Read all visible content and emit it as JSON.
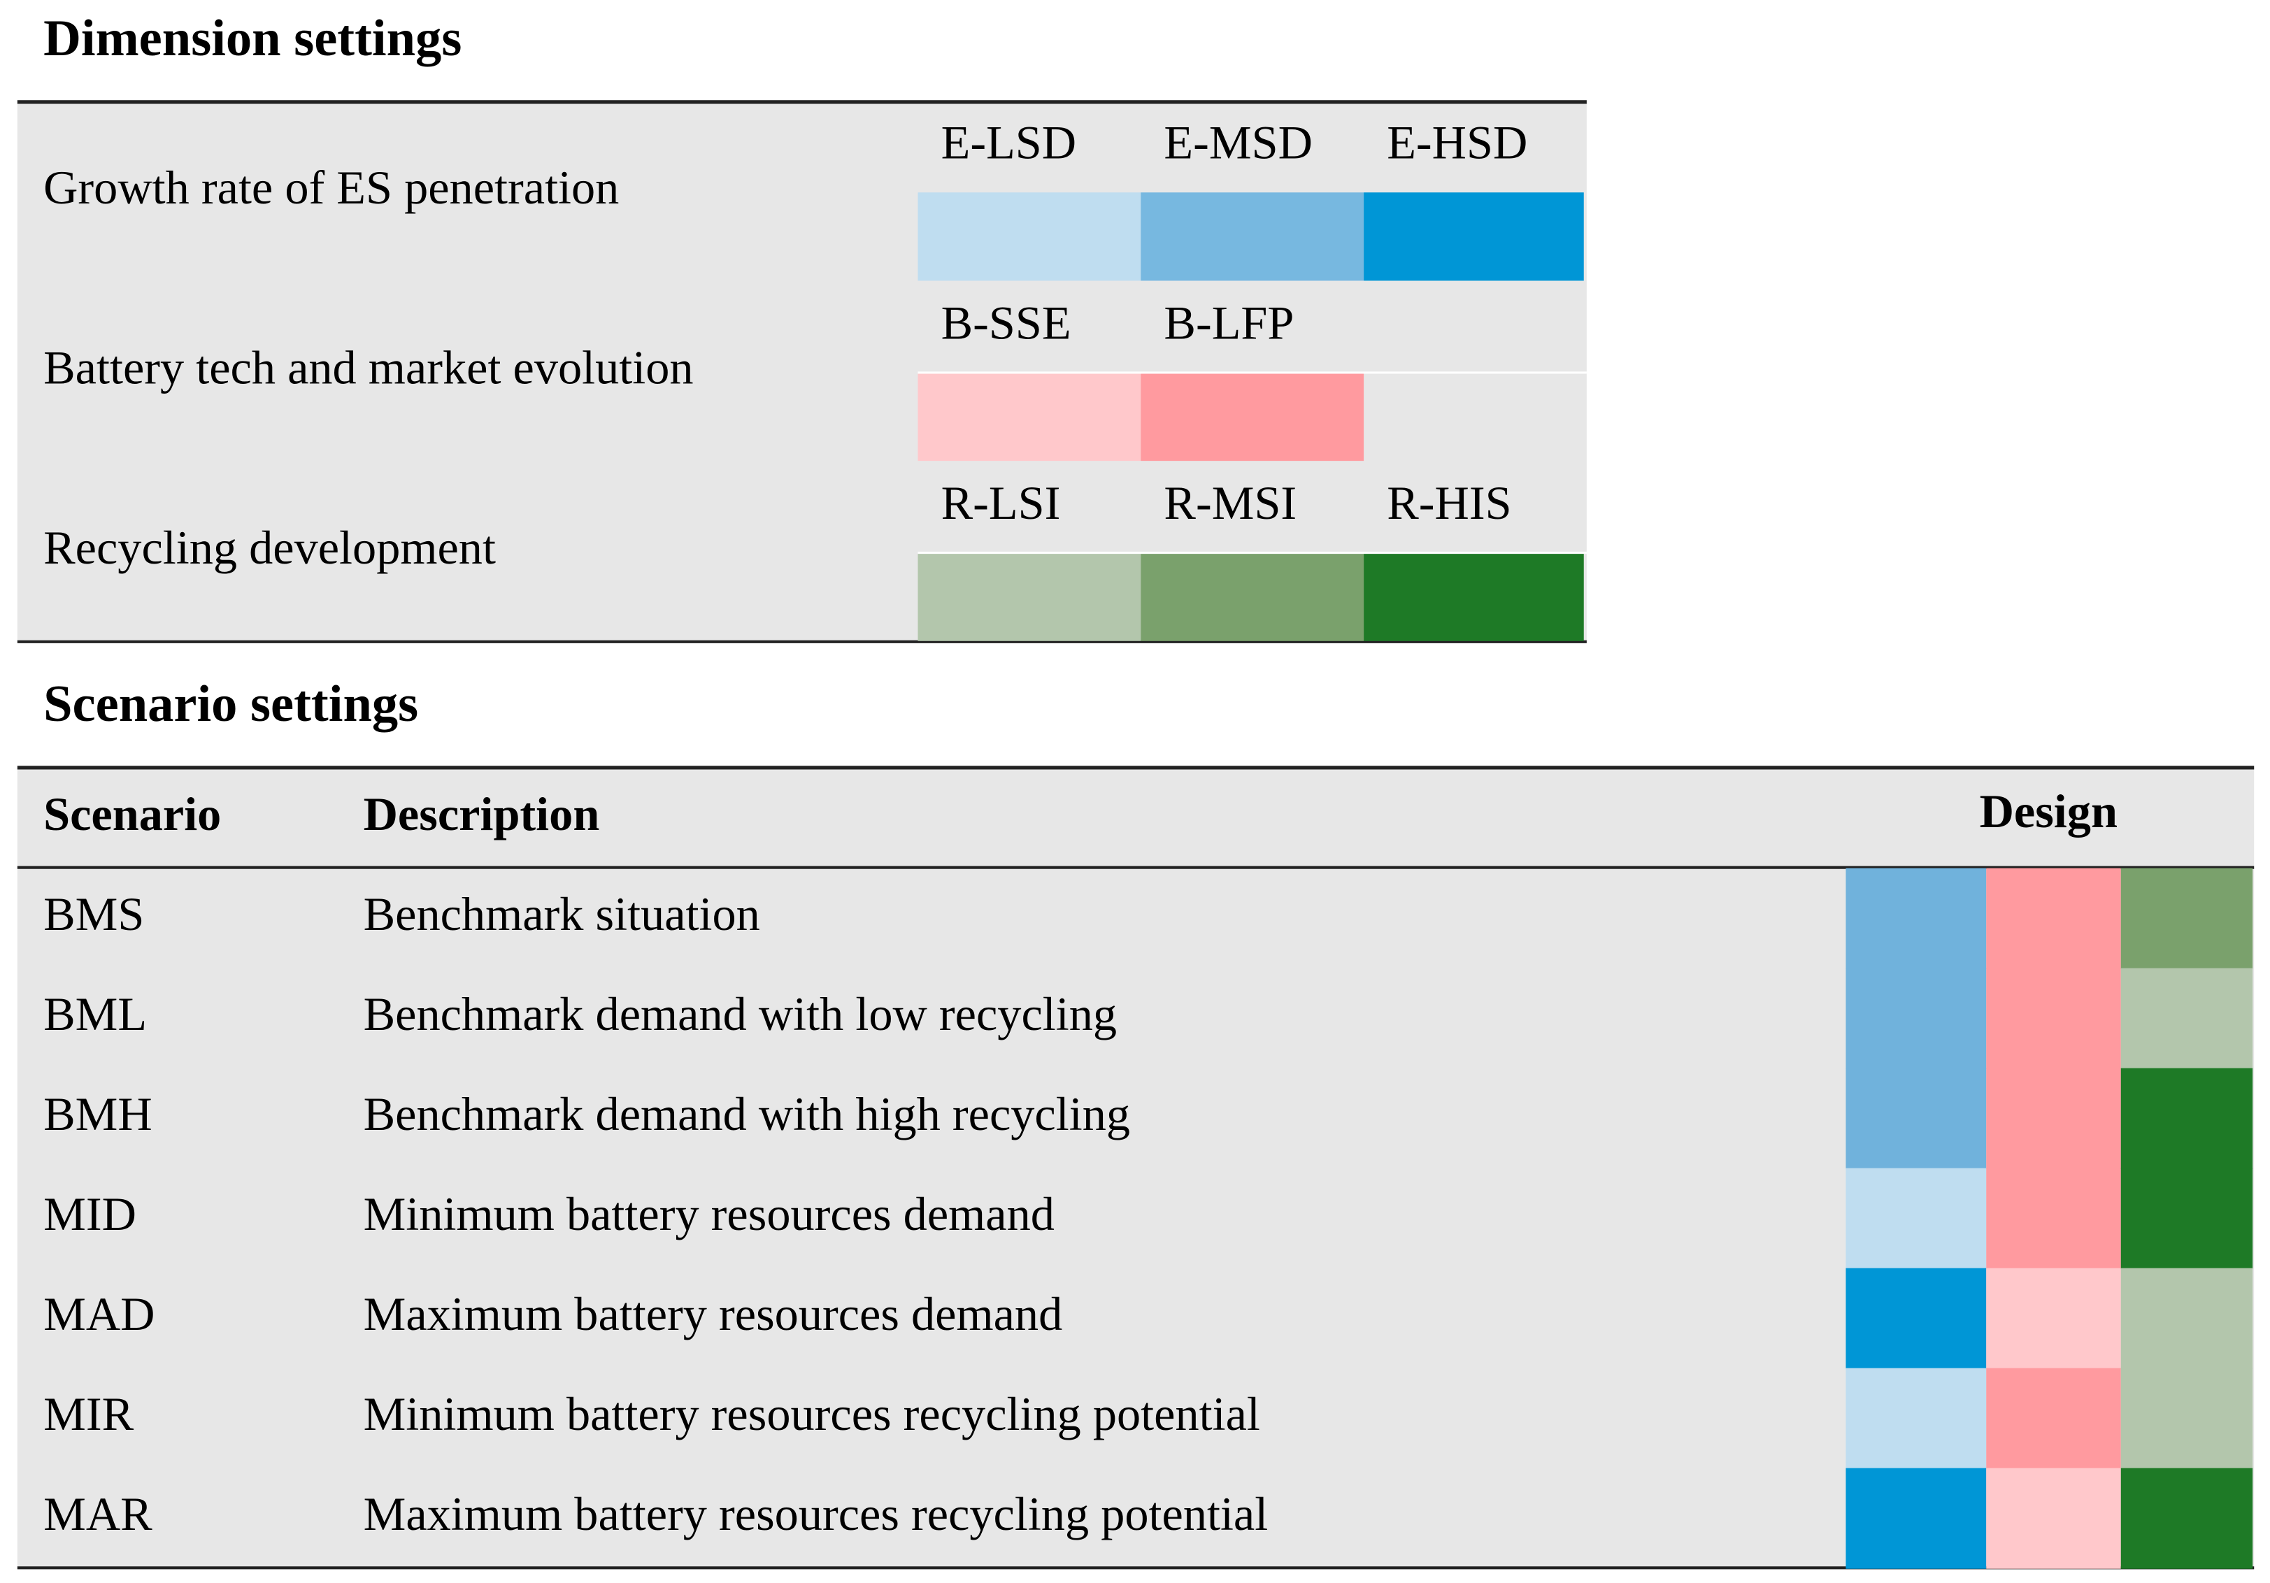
{
  "dimension_settings": {
    "title": "Dimension settings",
    "rows": [
      {
        "label": "Growth rate of ES penetration",
        "options": [
          {
            "label": "E-LSD",
            "color": "#bfddf0"
          },
          {
            "label": "E-MSD",
            "color": "#77b8e0"
          },
          {
            "label": "E-HSD",
            "color": "#0096d6"
          }
        ]
      },
      {
        "label": "Battery tech and market evolution",
        "options": [
          {
            "label": "B-SSE",
            "color": "#ffc8cb"
          },
          {
            "label": "B-LFP",
            "color": "#ff9a9f"
          }
        ]
      },
      {
        "label": "Recycling development",
        "options": [
          {
            "label": "R-LSI",
            "color": "#b3c6ac"
          },
          {
            "label": "R-MSI",
            "color": "#7aa16c"
          },
          {
            "label": "R-HIS",
            "color": "#1e7a26"
          }
        ]
      }
    ]
  },
  "scenario_settings": {
    "title": "Scenario settings",
    "header": [
      "Scenario",
      "Description",
      "Design"
    ],
    "rows": [
      {
        "scenario": "BMS",
        "description": "Benchmark situation",
        "design": [
          "#70b2dc",
          "#ff9a9f",
          "#7aa16c"
        ]
      },
      {
        "scenario": "BML",
        "description": "Benchmark demand with low recycling",
        "design": [
          "#70b2dc",
          "#ff9a9f",
          "#b3c6ac"
        ]
      },
      {
        "scenario": "BMH",
        "description": "Benchmark demand with high recycling",
        "design": [
          "#70b2dc",
          "#ff9a9f",
          "#1e7a26"
        ]
      },
      {
        "scenario": "MID",
        "description": "Minimum battery resources demand",
        "design": [
          "#bfddf0",
          "#ff9a9f",
          "#1e7a26"
        ]
      },
      {
        "scenario": "MAD",
        "description": "Maximum battery resources demand",
        "design": [
          "#0096d6",
          "#ffc8cb",
          "#b3c6ac"
        ]
      },
      {
        "scenario": "MIR",
        "description": "Minimum battery resources recycling potential",
        "design": [
          "#bfddf0",
          "#ff9a9f",
          "#b3c6ac"
        ]
      },
      {
        "scenario": "MAR",
        "description": "Maximum battery resources recycling potential",
        "design": [
          "#0096d6",
          "#ffc8cb",
          "#1e7a26"
        ]
      }
    ]
  }
}
